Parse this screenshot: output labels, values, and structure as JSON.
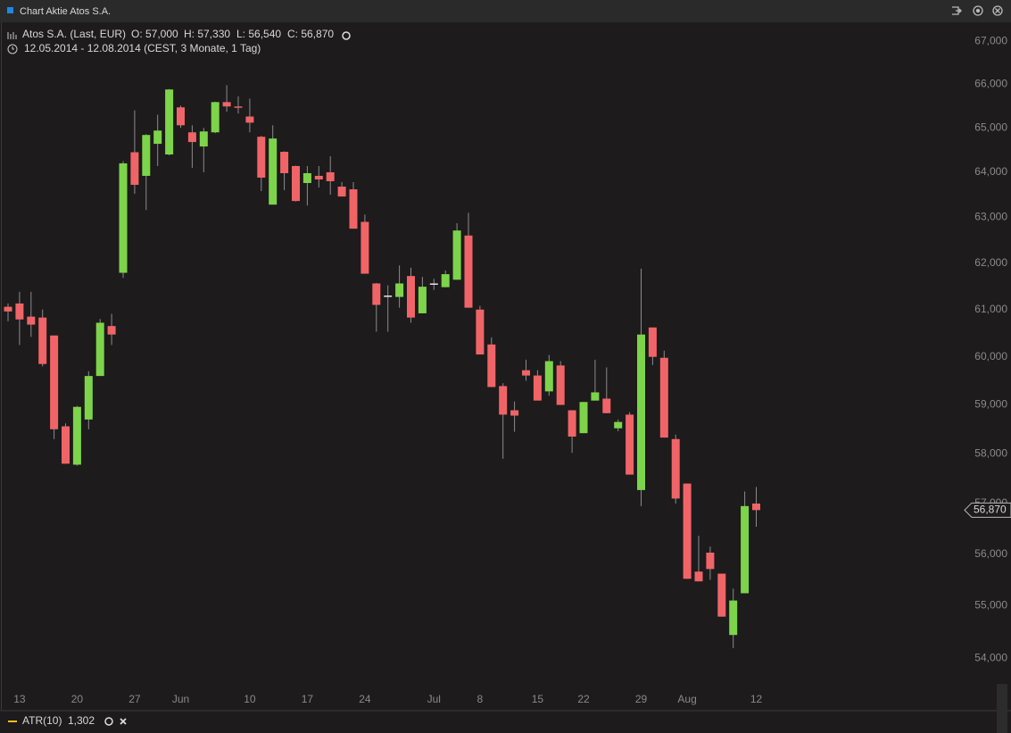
{
  "chart_data": {
    "type": "candlestick",
    "title": "Chart Aktie Atos S.A.",
    "subtitle": "Atos S.A. (Last, EUR)",
    "ohlc_labels": [
      "O: 57,000",
      "H: 57,330",
      "L: 56,540",
      "C: 56,870"
    ],
    "period": "12.05.2014 - 12.08.2014 (CEST, 3 Monate, 1 Tag)",
    "categories": [
      null,
      "13",
      null,
      null,
      null,
      null,
      "20",
      null,
      null,
      null,
      null,
      "27",
      null,
      null,
      null,
      "Jun",
      null,
      null,
      null,
      null,
      null,
      "10",
      null,
      null,
      null,
      null,
      "17",
      null,
      null,
      null,
      null,
      "24",
      null,
      null,
      null,
      null,
      null,
      "Jul",
      null,
      null,
      null,
      "8",
      null,
      null,
      null,
      null,
      "15",
      null,
      null,
      null,
      "22",
      null,
      null,
      null,
      null,
      "29",
      null,
      null,
      null,
      "Aug",
      null,
      null,
      null,
      null,
      null,
      "12"
    ],
    "open": [
      61060,
      61130,
      60850,
      60830,
      60450,
      58560,
      57780,
      58700,
      59600,
      60650,
      61790,
      64450,
      63920,
      64640,
      64400,
      65470,
      64900,
      64580,
      64900,
      65590,
      65490,
      65260,
      64800,
      63280,
      64460,
      64140,
      63760,
      63920,
      64000,
      63680,
      63620,
      62900,
      61560,
      61300,
      61270,
      61720,
      60920,
      61560,
      61480,
      61640,
      62600,
      61000,
      60260,
      59390,
      58890,
      59720,
      59610,
      59280,
      59820,
      58890,
      58420,
      59090,
      59130,
      58520,
      58800,
      57270,
      60620,
      59980,
      58300,
      57400,
      55660,
      56030,
      55620,
      54440,
      55240,
      57000
    ],
    "high": [
      61130,
      61380,
      61380,
      61000,
      60450,
      58620,
      58980,
      59700,
      60800,
      60910,
      64250,
      65400,
      64860,
      65300,
      65890,
      65510,
      65060,
      65000,
      65600,
      65980,
      65720,
      65670,
      64820,
      65060,
      64470,
      64150,
      64140,
      64140,
      64360,
      63780,
      63780,
      63060,
      61570,
      61520,
      61950,
      61900,
      61700,
      61660,
      61840,
      62870,
      63100,
      61080,
      60410,
      59450,
      59070,
      59940,
      59720,
      60040,
      59910,
      58890,
      59060,
      59940,
      59780,
      58700,
      58850,
      61880,
      60620,
      60130,
      58390,
      57400,
      56360,
      56150,
      55620,
      55330,
      57240,
      57330
    ],
    "low": [
      60750,
      60250,
      60420,
      59800,
      58300,
      57800,
      57760,
      58500,
      59600,
      60250,
      61680,
      63520,
      63160,
      64140,
      64380,
      65000,
      64100,
      64000,
      64880,
      65370,
      65330,
      64900,
      63580,
      63280,
      63600,
      63350,
      63260,
      63660,
      63500,
      63460,
      62750,
      61770,
      60530,
      60530,
      61040,
      60720,
      60920,
      61420,
      61480,
      61640,
      61040,
      60050,
      59370,
      57900,
      58450,
      59500,
      59090,
      59190,
      59000,
      58020,
      58420,
      59090,
      58830,
      58460,
      57580,
      56950,
      59830,
      58330,
      57000,
      55520,
      55470,
      55500,
      54790,
      54190,
      55240,
      56540
    ],
    "close": [
      60960,
      60790,
      60680,
      59850,
      58500,
      57800,
      58960,
      59600,
      60720,
      60470,
      64200,
      63720,
      64840,
      64940,
      65880,
      65060,
      64680,
      64920,
      65590,
      65490,
      65480,
      65120,
      63880,
      64760,
      63980,
      63360,
      63980,
      63840,
      63800,
      63460,
      62750,
      61770,
      61100,
      61300,
      61560,
      60830,
      61490,
      61560,
      61760,
      62710,
      61040,
      60050,
      59370,
      58800,
      58780,
      59610,
      59090,
      59910,
      59000,
      58350,
      59060,
      59260,
      58830,
      58650,
      57580,
      60470,
      60000,
      58330,
      57100,
      55520,
      55470,
      55710,
      54790,
      55100,
      56950,
      56870
    ],
    "up_color": "#7dd44a",
    "down_color": "#f06468",
    "doji_color": "#e6e6e6",
    "wick_color": "#8c8c8c",
    "last_label": "56,870",
    "log_scale": true,
    "grid": false,
    "ylim": [
      53450,
      67340
    ],
    "yticks": [
      {
        "value": 54000,
        "label": "54,000"
      },
      {
        "value": 55000,
        "label": "55,000"
      },
      {
        "value": 56000,
        "label": "56,000"
      },
      {
        "value": 57000,
        "label": "57,000"
      },
      {
        "value": 58000,
        "label": "58,000"
      },
      {
        "value": 59000,
        "label": "59,000"
      },
      {
        "value": 60000,
        "label": "60,000"
      },
      {
        "value": 61000,
        "label": "61,000"
      },
      {
        "value": 62000,
        "label": "62,000"
      },
      {
        "value": 63000,
        "label": "63,000"
      },
      {
        "value": 64000,
        "label": "64,000"
      },
      {
        "value": 65000,
        "label": "65,000"
      },
      {
        "value": 66000,
        "label": "66,000"
      },
      {
        "value": 67000,
        "label": "67,000"
      }
    ],
    "indicator": {
      "name": "ATR(10)",
      "last": "1,302",
      "color": "#f2c21b"
    }
  }
}
